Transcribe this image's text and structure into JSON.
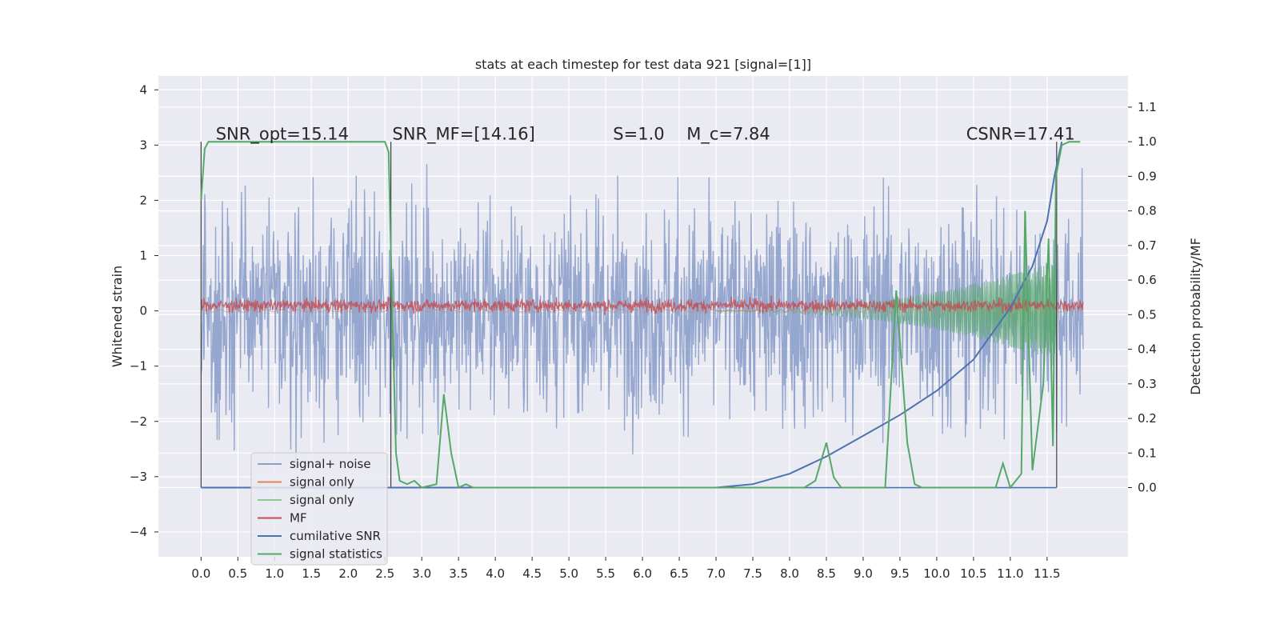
{
  "chart_data": {
    "type": "line",
    "title": "stats at each timestep for test data 921 [signal=[1]]",
    "xlabel": "",
    "ylabel_left": "Whitened strain",
    "ylabel_right": "Detection probability/MF",
    "xlim": [
      -0.58,
      12.6
    ],
    "ylim_left": [
      -4.45,
      4.25
    ],
    "ylim_right": [
      -0.2,
      1.19
    ],
    "x_ticks": [
      0.0,
      0.5,
      1.0,
      1.5,
      2.0,
      2.5,
      3.0,
      3.5,
      4.0,
      4.5,
      5.0,
      5.5,
      6.0,
      6.5,
      7.0,
      7.5,
      8.0,
      8.5,
      9.0,
      9.5,
      10.0,
      10.5,
      11.0,
      11.5
    ],
    "x_tick_labels": [
      "0.0",
      "0.5",
      "1.0",
      "1.5",
      "2.0",
      "2.5",
      "3.0",
      "3.5",
      "4.0",
      "4.5",
      "5.0",
      "5.5",
      "6.0",
      "6.5",
      "7.0",
      "7.5",
      "8.0",
      "8.5",
      "9.0",
      "9.5",
      "10.0",
      "10.5",
      "11.0",
      "11.5"
    ],
    "y_ticks_left": [
      -4,
      -3,
      -2,
      -1,
      0,
      1,
      2,
      3,
      4
    ],
    "y_tick_labels_left": [
      "−4",
      "−3",
      "−2",
      "−1",
      "0",
      "1",
      "2",
      "3",
      "4"
    ],
    "y_ticks_right": [
      0.0,
      0.1,
      0.2,
      0.3,
      0.4,
      0.5,
      0.6,
      0.7,
      0.8,
      0.9,
      1.0,
      1.1
    ],
    "y_tick_labels_right": [
      "0.0",
      "0.1",
      "0.2",
      "0.3",
      "0.4",
      "0.5",
      "0.6",
      "0.7",
      "0.8",
      "0.9",
      "1.0",
      "1.1"
    ],
    "annotations": [
      {
        "text": "SNR_opt=15.14",
        "x": 0.2,
        "y": 3.1
      },
      {
        "text": "SNR_MF=[14.16]",
        "x": 2.6,
        "y": 3.1
      },
      {
        "text": "S=1.0",
        "x": 5.6,
        "y": 3.1
      },
      {
        "text": "M_c=7.84",
        "x": 6.6,
        "y": 3.1
      },
      {
        "text": "CSNR=17.41",
        "x": 10.4,
        "y": 3.1
      }
    ],
    "signal_window": {
      "start": 0.0,
      "end": 2.58,
      "merger": 11.63
    },
    "series": [
      {
        "name": "signal+ noise",
        "color": "#8da0cb",
        "axis": "left",
        "x_range": [
          0.0,
          11.99
        ],
        "amplitude_std": 1.0
      },
      {
        "name": "signal only",
        "color": "#dd8452",
        "axis": "left"
      },
      {
        "name": "signal only",
        "color": "#55a868",
        "axis": "left",
        "envelope": {
          "start": 7.0,
          "end": 11.63,
          "max_amplitude": 0.9
        }
      },
      {
        "name": "MF",
        "color": "#c44e52",
        "axis": "left",
        "baseline": 0.1,
        "noise": 0.06
      },
      {
        "name": "cumilative SNR",
        "color": "#4c72b0",
        "axis": "right",
        "x": [
          0.0,
          6.5,
          7.0,
          7.5,
          8.0,
          8.5,
          9.0,
          9.5,
          10.0,
          10.5,
          11.0,
          11.3,
          11.5,
          11.6,
          11.7
        ],
        "y": [
          0.0,
          0.0,
          0.0,
          0.01,
          0.04,
          0.09,
          0.15,
          0.21,
          0.28,
          0.37,
          0.52,
          0.64,
          0.77,
          0.9,
          1.0
        ]
      },
      {
        "name": "signal statistics",
        "color": "#55a868",
        "axis": "right",
        "x": [
          0.0,
          0.05,
          0.1,
          2.5,
          2.55,
          2.6,
          2.65,
          2.7,
          2.8,
          2.9,
          3.0,
          3.2,
          3.3,
          3.4,
          3.5,
          3.6,
          3.7,
          4.0,
          8.2,
          8.35,
          8.5,
          8.6,
          8.7,
          9.3,
          9.45,
          9.6,
          9.7,
          9.8,
          10.0,
          10.8,
          10.9,
          11.0,
          11.15,
          11.2,
          11.3,
          11.45,
          11.52,
          11.58,
          11.62,
          11.7,
          11.8,
          11.95
        ],
        "y": [
          0.83,
          0.98,
          1.0,
          1.0,
          0.97,
          0.5,
          0.1,
          0.02,
          0.01,
          0.02,
          0.0,
          0.01,
          0.27,
          0.1,
          0.0,
          0.01,
          0.0,
          0.0,
          0.0,
          0.02,
          0.13,
          0.03,
          0.0,
          0.0,
          0.57,
          0.13,
          0.01,
          0.0,
          0.0,
          0.0,
          0.07,
          0.0,
          0.04,
          0.8,
          0.05,
          0.3,
          0.72,
          0.12,
          0.9,
          0.99,
          1.0,
          1.0
        ]
      }
    ],
    "legend": {
      "location": "lower-left",
      "entries": [
        {
          "label": "signal+ noise",
          "color": "#8da0cb"
        },
        {
          "label": "signal only",
          "color": "#dd8452"
        },
        {
          "label": "signal only",
          "color": "#8cc78c"
        },
        {
          "label": "MF",
          "color": "#c44e52"
        },
        {
          "label": "cumilative SNR",
          "color": "#4c72b0"
        },
        {
          "label": "signal statistics",
          "color": "#55a868"
        }
      ]
    }
  }
}
